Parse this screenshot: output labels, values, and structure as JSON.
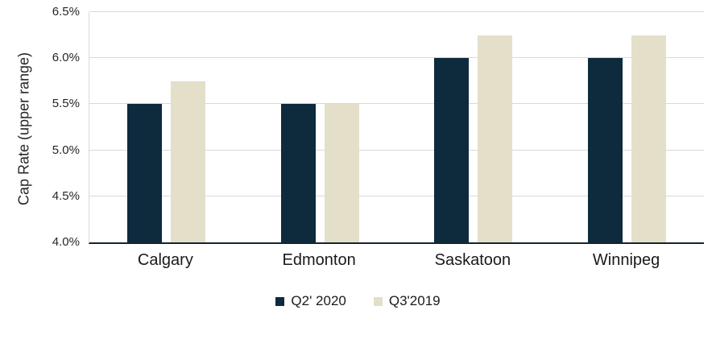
{
  "chart_data": {
    "type": "bar",
    "title": "",
    "xlabel": "",
    "ylabel": "Cap Rate (upper range)",
    "categories": [
      "Calgary",
      "Edmonton",
      "Saskatoon",
      "Winnipeg"
    ],
    "series": [
      {
        "name": "Q2' 2020",
        "color": "#0e2b3d",
        "values": [
          5.5,
          5.5,
          6.0,
          6.0
        ]
      },
      {
        "name": "Q3'2019",
        "color": "#e3dfc9",
        "values": [
          5.75,
          5.5,
          6.25,
          6.25
        ]
      }
    ],
    "ylim": [
      4.0,
      6.5
    ],
    "yticks": [
      4.0,
      4.5,
      5.0,
      5.5,
      6.0,
      6.5
    ],
    "ytick_suffix": "%",
    "grid": true,
    "legend_position": "bottom",
    "colors": {
      "gridline": "#d9d9d9",
      "axis_line": "#d9d9d9",
      "baseline": "#16242f",
      "tick_text": "#262626",
      "category_text": "#1a1a1a"
    }
  }
}
